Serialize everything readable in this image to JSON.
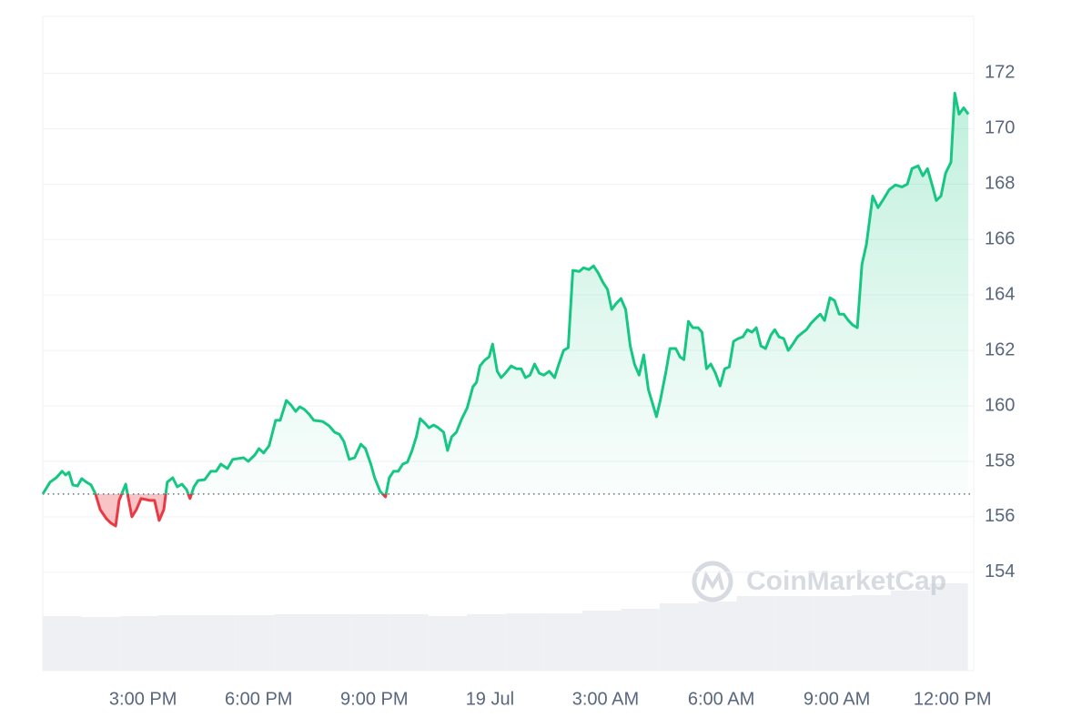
{
  "chart_data": {
    "type": "line",
    "color_up": "#16c784",
    "color_down": "#ea3943",
    "baseline": 156.82,
    "grid": true,
    "xlim": [
      12.4,
      36.55
    ],
    "ylim": [
      150.45,
      174.05
    ],
    "yticks": [
      154,
      156,
      158,
      160,
      162,
      164,
      166,
      168,
      170,
      172
    ],
    "xticks": [
      {
        "value": 15,
        "label": "3:00 PM"
      },
      {
        "value": 18,
        "label": "6:00 PM"
      },
      {
        "value": 21,
        "label": "9:00 PM"
      },
      {
        "value": 24,
        "label": "19 Jul"
      },
      {
        "value": 27,
        "label": "3:00 AM"
      },
      {
        "value": 30,
        "label": "6:00 AM"
      },
      {
        "value": 33,
        "label": "9:00 AM"
      },
      {
        "value": 36,
        "label": "12:00 PM"
      }
    ],
    "x": [
      12.4,
      12.59,
      12.75,
      12.9,
      12.99,
      13.08,
      13.18,
      13.3,
      13.41,
      13.53,
      13.65,
      13.77,
      13.89,
      14.05,
      14.17,
      14.29,
      14.38,
      14.55,
      14.71,
      14.83,
      14.95,
      15.18,
      15.3,
      15.42,
      15.54,
      15.63,
      15.77,
      15.89,
      16.01,
      16.13,
      16.22,
      16.32,
      16.43,
      16.6,
      16.76,
      16.9,
      17.02,
      17.19,
      17.33,
      17.61,
      17.73,
      17.9,
      18.01,
      18.13,
      18.27,
      18.44,
      18.56,
      18.72,
      18.84,
      18.96,
      19.07,
      19.19,
      19.31,
      19.43,
      19.66,
      19.83,
      19.97,
      20.09,
      20.21,
      20.35,
      20.49,
      20.65,
      20.77,
      20.91,
      21.01,
      21.15,
      21.29,
      21.39,
      21.5,
      21.62,
      21.74,
      21.86,
      21.98,
      22.09,
      22.19,
      22.31,
      22.42,
      22.54,
      22.66,
      22.8,
      22.9,
      23.01,
      23.13,
      23.27,
      23.41,
      23.56,
      23.65,
      23.74,
      23.86,
      23.98,
      24.07,
      24.19,
      24.29,
      24.4,
      24.55,
      24.69,
      24.81,
      24.92,
      25.04,
      25.16,
      25.28,
      25.4,
      25.54,
      25.68,
      25.77,
      25.91,
      26.03,
      26.15,
      26.32,
      26.43,
      26.57,
      26.69,
      26.81,
      26.93,
      27.05,
      27.16,
      27.28,
      27.4,
      27.52,
      27.64,
      27.75,
      27.87,
      27.99,
      28.11,
      28.23,
      28.32,
      28.42,
      28.56,
      28.67,
      28.82,
      28.93,
      29.03,
      29.15,
      29.26,
      29.4,
      29.5,
      29.62,
      29.73,
      29.85,
      29.97,
      30.09,
      30.21,
      30.32,
      30.44,
      30.56,
      30.68,
      30.8,
      30.91,
      31.03,
      31.15,
      31.29,
      31.39,
      31.5,
      31.62,
      31.74,
      31.86,
      31.98,
      32.09,
      32.21,
      32.33,
      32.45,
      32.57,
      32.68,
      32.82,
      32.94,
      33.06,
      33.18,
      33.3,
      33.41,
      33.53,
      33.65,
      33.77,
      33.93,
      34.07,
      34.22,
      34.36,
      34.52,
      34.69,
      34.83,
      34.95,
      35.11,
      35.23,
      35.35,
      35.47,
      35.58,
      35.7,
      35.82,
      35.96,
      36.06,
      36.17,
      36.29,
      36.41
    ],
    "values": [
      156.82,
      157.25,
      157.41,
      157.64,
      157.51,
      157.61,
      157.15,
      157.11,
      157.38,
      157.25,
      157.15,
      156.82,
      156.26,
      155.93,
      155.77,
      155.67,
      156.59,
      157.18,
      156.0,
      156.26,
      156.66,
      156.59,
      156.59,
      155.87,
      156.26,
      157.25,
      157.41,
      157.08,
      157.18,
      156.98,
      156.66,
      157.08,
      157.31,
      157.34,
      157.64,
      157.64,
      157.9,
      157.74,
      158.07,
      158.13,
      158.0,
      158.23,
      158.46,
      158.3,
      158.56,
      159.48,
      159.48,
      160.2,
      160.03,
      159.8,
      159.97,
      159.87,
      159.7,
      159.48,
      159.44,
      159.28,
      159.05,
      158.98,
      158.72,
      158.07,
      158.13,
      158.62,
      158.46,
      157.9,
      157.41,
      156.92,
      156.72,
      157.41,
      157.64,
      157.64,
      157.9,
      157.97,
      158.39,
      158.89,
      159.54,
      159.38,
      159.21,
      159.31,
      159.21,
      159.05,
      158.39,
      158.89,
      159.05,
      159.54,
      159.93,
      160.69,
      160.85,
      161.44,
      161.64,
      161.77,
      162.23,
      161.25,
      161.02,
      161.18,
      161.44,
      161.34,
      161.34,
      161.02,
      161.11,
      161.51,
      161.18,
      161.11,
      161.25,
      161.02,
      161.44,
      162.0,
      162.1,
      164.89,
      164.85,
      164.98,
      164.92,
      165.05,
      164.79,
      164.46,
      164.2,
      163.48,
      163.7,
      163.87,
      163.48,
      162.16,
      161.51,
      161.11,
      161.84,
      160.59,
      160.03,
      159.61,
      160.2,
      161.18,
      162.07,
      162.07,
      161.77,
      161.67,
      163.05,
      162.82,
      162.82,
      162.66,
      161.34,
      161.51,
      161.18,
      160.72,
      161.34,
      161.41,
      162.33,
      162.43,
      162.49,
      162.75,
      162.66,
      162.82,
      162.16,
      162.07,
      162.56,
      162.75,
      162.49,
      162.43,
      162.0,
      162.23,
      162.49,
      162.62,
      162.75,
      162.98,
      163.15,
      163.31,
      163.08,
      163.9,
      163.8,
      163.31,
      163.31,
      163.08,
      162.92,
      162.82,
      165.11,
      165.84,
      167.57,
      167.15,
      167.48,
      167.8,
      167.97,
      167.9,
      168.0,
      168.56,
      168.66,
      168.3,
      168.56,
      167.97,
      167.41,
      167.57,
      168.39,
      168.79,
      171.28,
      170.52,
      170.75,
      170.52
    ],
    "volume": {
      "color": "#eef0f4",
      "x": [
        12.4,
        13.4,
        14.4,
        15.4,
        16.4,
        17.4,
        18.4,
        19.4,
        20.4,
        21.4,
        22.4,
        23.4,
        24.4,
        25.4,
        26.4,
        27.4,
        28.4,
        29.4,
        30.4,
        31.4,
        32.4,
        33.4,
        34.4,
        35.4
      ],
      "values": [
        60,
        59,
        60,
        61,
        61,
        61,
        62,
        62,
        62,
        62,
        60,
        62,
        63,
        63,
        66,
        68,
        74,
        76,
        82,
        82,
        82,
        83,
        88,
        96
      ]
    },
    "watermark": "CoinMarketCap"
  }
}
